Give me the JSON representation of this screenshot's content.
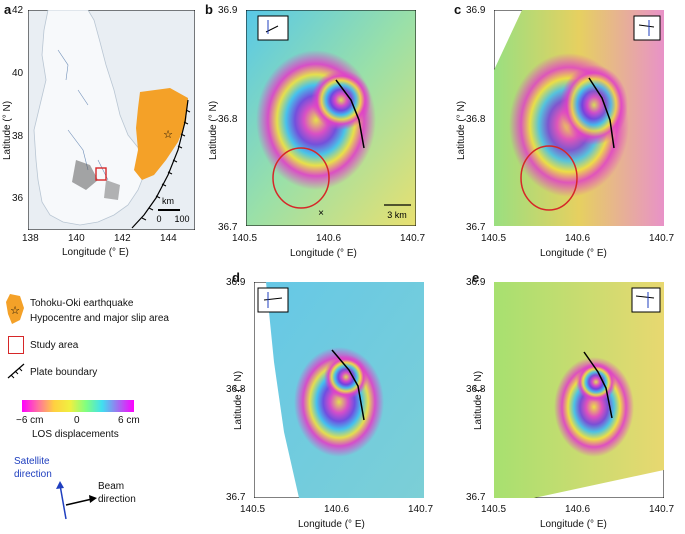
{
  "panels": {
    "a": {
      "letter": "a",
      "xticks": [
        "138",
        "140",
        "142",
        "144"
      ],
      "yticks": [
        "42",
        "40",
        "38",
        "36"
      ],
      "xlabel": "Longitude (° E)",
      "ylabel": "Latitude (° N)",
      "scalebar": {
        "unit": "km",
        "ticks": [
          "0",
          "100"
        ]
      }
    },
    "b": {
      "letter": "b",
      "xticks": [
        "140.5",
        "140.6",
        "140.7"
      ],
      "yticks": [
        "36.9",
        "36.8",
        "36.7"
      ],
      "xlabel": "Longitude (° E)",
      "ylabel": "Latitude (° N)",
      "scalebar": "3 km",
      "marker": "×"
    },
    "c": {
      "letter": "c",
      "xticks": [
        "140.5",
        "140.6",
        "140.7"
      ],
      "yticks": [
        "36.9",
        "36.8",
        "36.7"
      ],
      "xlabel": "Longitude (° E)",
      "ylabel": "Latitude (° N)"
    },
    "d": {
      "letter": "d",
      "xticks": [
        "140.5",
        "140.6",
        "140.7"
      ],
      "yticks": [
        "36.9",
        "36.8",
        "36.7"
      ],
      "xlabel": "Longitude (° E)",
      "ylabel": "Latitude (° N)"
    },
    "e": {
      "letter": "e",
      "xticks": [
        "140.5",
        "140.6",
        "140.7"
      ],
      "yticks": [
        "36.9",
        "36.8",
        "36.7"
      ],
      "xlabel": "Longitude (° E)",
      "ylabel": "Latitude (° N)"
    }
  },
  "legend": {
    "earthquake_line1": "Tohoku-Oki earthquake",
    "earthquake_line2": "Hypocentre and major slip area",
    "study_area": "Study area",
    "plate_boundary": "Plate boundary",
    "colorbar_ticks": [
      "−6 cm",
      "0",
      "6 cm"
    ],
    "colorbar_label": "LOS displacements",
    "satellite_direction_line1": "Satellite",
    "satellite_direction_line2": "direction",
    "beam_direction_line1": "Beam",
    "beam_direction_line2": "direction"
  },
  "colors": {
    "slip_area": "#f4a128",
    "study_box": "#d62728",
    "satellite_arrow": "#1f3fbf",
    "fault_line": "#000000"
  }
}
